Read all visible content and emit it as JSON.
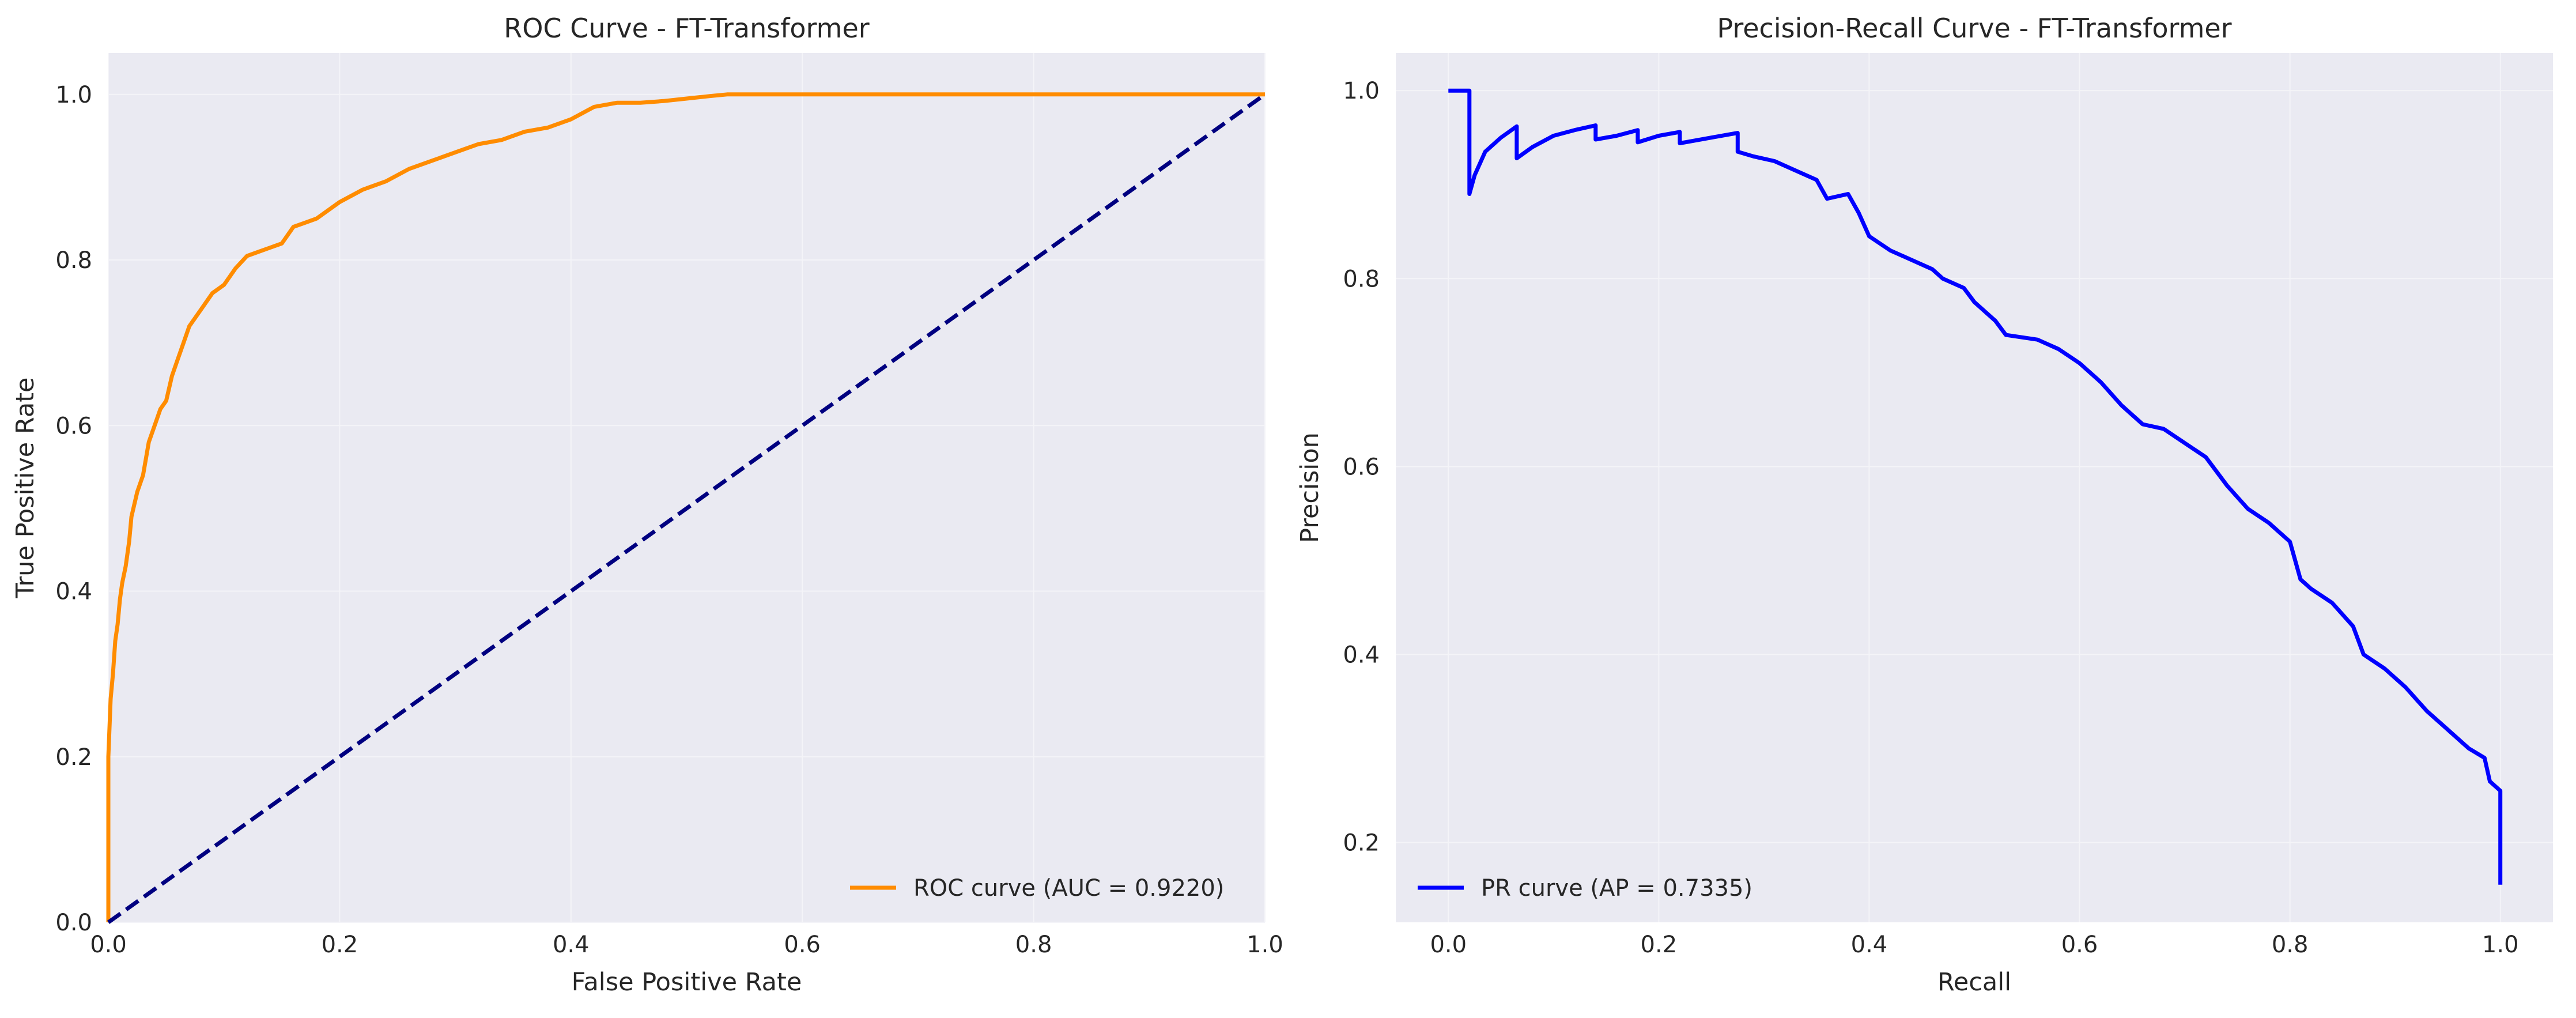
{
  "figure": {
    "background": "#ffffff",
    "panel_background": "#eaeaf2",
    "grid_color": "#f4f4f8"
  },
  "chart_data": [
    {
      "type": "line",
      "title": "ROC Curve - FT-Transformer",
      "xlabel": "False Positive Rate",
      "ylabel": "True Positive Rate",
      "xlim": [
        0.0,
        1.0
      ],
      "ylim": [
        0.0,
        1.05
      ],
      "x_ticks": [
        0.0,
        0.2,
        0.4,
        0.6,
        0.8,
        1.0
      ],
      "y_ticks": [
        0.0,
        0.2,
        0.4,
        0.6,
        0.8,
        1.0
      ],
      "x_tick_labels": [
        "0.0",
        "0.2",
        "0.4",
        "0.6",
        "0.8",
        "1.0"
      ],
      "y_tick_labels": [
        "0.0",
        "0.2",
        "0.4",
        "0.6",
        "0.8",
        "1.0"
      ],
      "grid": true,
      "legend": {
        "placement": "lower-right",
        "entries": [
          "ROC curve (AUC = 0.9220)"
        ]
      },
      "series": [
        {
          "name": "ROC curve (AUC = 0.9220)",
          "color": "#ff8c00",
          "style": "solid",
          "x": [
            0.0,
            0.0,
            0.002,
            0.004,
            0.006,
            0.008,
            0.01,
            0.012,
            0.015,
            0.018,
            0.02,
            0.025,
            0.03,
            0.035,
            0.04,
            0.045,
            0.05,
            0.055,
            0.06,
            0.065,
            0.07,
            0.08,
            0.09,
            0.1,
            0.11,
            0.12,
            0.13,
            0.14,
            0.15,
            0.16,
            0.17,
            0.18,
            0.2,
            0.22,
            0.24,
            0.26,
            0.28,
            0.3,
            0.32,
            0.34,
            0.36,
            0.38,
            0.4,
            0.42,
            0.44,
            0.46,
            0.48,
            0.5,
            0.52,
            0.535,
            0.6,
            0.7,
            0.8,
            0.9,
            1.0
          ],
          "y": [
            0.0,
            0.2,
            0.27,
            0.3,
            0.34,
            0.36,
            0.39,
            0.41,
            0.43,
            0.46,
            0.49,
            0.52,
            0.54,
            0.58,
            0.6,
            0.62,
            0.63,
            0.66,
            0.68,
            0.7,
            0.72,
            0.74,
            0.76,
            0.77,
            0.79,
            0.805,
            0.81,
            0.815,
            0.82,
            0.84,
            0.845,
            0.85,
            0.87,
            0.885,
            0.895,
            0.91,
            0.92,
            0.93,
            0.94,
            0.945,
            0.955,
            0.96,
            0.97,
            0.985,
            0.99,
            0.99,
            0.992,
            0.995,
            0.998,
            1.0,
            1.0,
            1.0,
            1.0,
            1.0,
            1.0
          ]
        },
        {
          "name": "",
          "color": "#000080",
          "style": "dashed",
          "x": [
            0.0,
            1.0
          ],
          "y": [
            0.0,
            1.0
          ]
        }
      ]
    },
    {
      "type": "line",
      "title": "Precision-Recall Curve - FT-Transformer",
      "xlabel": "Recall",
      "ylabel": "Precision",
      "xlim": [
        -0.05,
        1.05
      ],
      "ylim": [
        0.115,
        1.04
      ],
      "x_ticks": [
        0.0,
        0.2,
        0.4,
        0.6,
        0.8,
        1.0
      ],
      "y_ticks": [
        0.2,
        0.4,
        0.6,
        0.8,
        1.0
      ],
      "x_tick_labels": [
        "0.0",
        "0.2",
        "0.4",
        "0.6",
        "0.8",
        "1.0"
      ],
      "y_tick_labels": [
        "0.2",
        "0.4",
        "0.6",
        "0.8",
        "1.0"
      ],
      "grid": true,
      "legend": {
        "placement": "lower-left",
        "entries": [
          "PR curve (AP = 0.7335)"
        ]
      },
      "series": [
        {
          "name": "PR curve (AP = 0.7335)",
          "color": "#0000ff",
          "style": "solid",
          "x": [
            0.0,
            0.02,
            0.02,
            0.025,
            0.035,
            0.05,
            0.065,
            0.065,
            0.08,
            0.1,
            0.12,
            0.14,
            0.14,
            0.16,
            0.18,
            0.18,
            0.2,
            0.22,
            0.22,
            0.25,
            0.275,
            0.275,
            0.29,
            0.31,
            0.33,
            0.35,
            0.36,
            0.38,
            0.39,
            0.4,
            0.42,
            0.44,
            0.46,
            0.47,
            0.49,
            0.5,
            0.52,
            0.53,
            0.56,
            0.58,
            0.6,
            0.62,
            0.64,
            0.66,
            0.68,
            0.7,
            0.72,
            0.74,
            0.76,
            0.78,
            0.8,
            0.81,
            0.82,
            0.84,
            0.86,
            0.87,
            0.89,
            0.91,
            0.93,
            0.95,
            0.97,
            0.985,
            0.99,
            1.0,
            1.0
          ],
          "y": [
            1.0,
            1.0,
            0.89,
            0.91,
            0.935,
            0.95,
            0.962,
            0.928,
            0.94,
            0.952,
            0.958,
            0.963,
            0.948,
            0.952,
            0.958,
            0.945,
            0.952,
            0.956,
            0.944,
            0.95,
            0.955,
            0.935,
            0.93,
            0.925,
            0.915,
            0.905,
            0.885,
            0.89,
            0.87,
            0.845,
            0.83,
            0.82,
            0.81,
            0.8,
            0.79,
            0.775,
            0.755,
            0.74,
            0.735,
            0.725,
            0.71,
            0.69,
            0.665,
            0.645,
            0.64,
            0.625,
            0.61,
            0.58,
            0.555,
            0.54,
            0.52,
            0.48,
            0.47,
            0.455,
            0.43,
            0.4,
            0.385,
            0.365,
            0.34,
            0.32,
            0.3,
            0.29,
            0.265,
            0.255,
            0.155
          ]
        }
      ]
    }
  ]
}
